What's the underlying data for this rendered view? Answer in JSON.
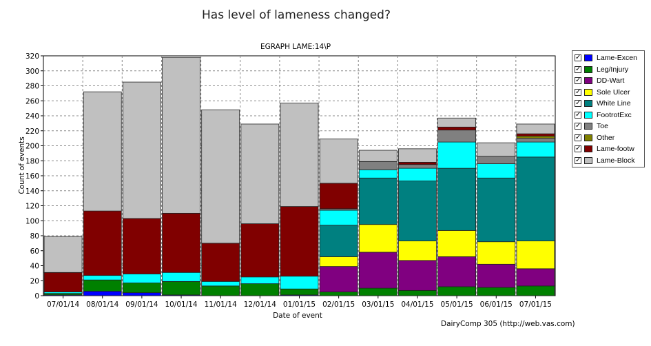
{
  "page_title": "Has level of lameness changed?",
  "footer": "DairyComp 305   (http://web.vas.com)",
  "chart_data": {
    "type": "bar",
    "stacked": true,
    "title": "EGRAPH LAME:14\\P",
    "xlabel": "Date of event",
    "ylabel": "Count of events",
    "ylim": [
      0,
      320
    ],
    "yticks": [
      0,
      20,
      40,
      60,
      80,
      100,
      120,
      140,
      160,
      180,
      200,
      220,
      240,
      260,
      280,
      300,
      320
    ],
    "grid": true,
    "legend_placement": "right",
    "categories": [
      "07/01/14",
      "08/01/14",
      "09/01/14",
      "10/01/14",
      "11/01/14",
      "12/01/14",
      "01/01/15",
      "02/01/15",
      "03/01/15",
      "04/01/15",
      "05/01/15",
      "06/01/15",
      "07/01/15"
    ],
    "series": [
      {
        "name": "Lame-Excen",
        "color": "#0000ff",
        "values": [
          1,
          6,
          4,
          1,
          0,
          0,
          1,
          0,
          0,
          0,
          0,
          0,
          0
        ]
      },
      {
        "name": "Leg/Injury",
        "color": "#008000",
        "values": [
          2,
          15,
          13,
          18,
          13,
          16,
          8,
          5,
          10,
          7,
          12,
          11,
          13
        ]
      },
      {
        "name": "DD-Wart",
        "color": "#800080",
        "values": [
          0,
          0,
          0,
          0,
          0,
          0,
          0,
          34,
          48,
          40,
          40,
          31,
          23
        ]
      },
      {
        "name": "Sole Ulcer",
        "color": "#ffff00",
        "values": [
          0,
          0,
          0,
          0,
          0,
          0,
          0,
          13,
          37,
          26,
          35,
          30,
          37
        ]
      },
      {
        "name": "White Line",
        "color": "#008080",
        "values": [
          0,
          0,
          0,
          0,
          0,
          0,
          0,
          42,
          62,
          80,
          83,
          85,
          112
        ]
      },
      {
        "name": "FootrotExc",
        "color": "#00ffff",
        "values": [
          2,
          6,
          12,
          12,
          6,
          9,
          17,
          20,
          11,
          17,
          35,
          19,
          20
        ]
      },
      {
        "name": "Toe",
        "color": "#808080",
        "values": [
          0,
          0,
          0,
          0,
          0,
          0,
          0,
          2,
          11,
          5,
          16,
          10,
          5
        ]
      },
      {
        "name": "Other",
        "color": "#808000",
        "values": [
          0,
          0,
          0,
          0,
          0,
          0,
          0,
          0,
          0,
          0,
          0,
          0,
          3
        ]
      },
      {
        "name": "Lame-footw",
        "color": "#800000",
        "values": [
          26,
          86,
          74,
          79,
          51,
          71,
          93,
          34,
          0,
          3,
          4,
          0,
          3
        ]
      },
      {
        "name": "Lame-Block",
        "color": "#c0c0c0",
        "values": [
          48,
          159,
          182,
          208,
          178,
          133,
          138,
          59,
          15,
          18,
          12,
          18,
          13
        ]
      }
    ]
  }
}
